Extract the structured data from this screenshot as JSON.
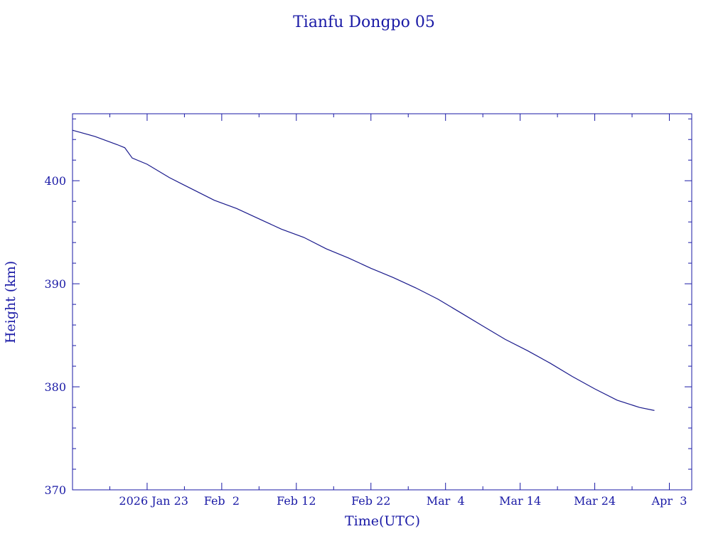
{
  "chart_data": {
    "type": "line",
    "title": "Tianfu Dongpo 05",
    "xlabel": "Time(UTC)",
    "ylabel": "Height (km)",
    "ylim": [
      370,
      406.5
    ],
    "xlim": [
      "2026-01-13",
      "2026-04-06"
    ],
    "grid": false,
    "x_ticks": [
      {
        "date": "2026-01-23",
        "label": "2026 Jan 23"
      },
      {
        "date": "2026-02-02",
        "label": "Feb  2"
      },
      {
        "date": "2026-02-12",
        "label": "Feb 12"
      },
      {
        "date": "2026-02-22",
        "label": "Feb 22"
      },
      {
        "date": "2026-03-04",
        "label": "Mar  4"
      },
      {
        "date": "2026-03-14",
        "label": "Mar 14"
      },
      {
        "date": "2026-03-24",
        "label": "Mar 24"
      },
      {
        "date": "2026-04-03",
        "label": "Apr  3"
      }
    ],
    "y_ticks": [
      {
        "value": 370,
        "label": "370"
      },
      {
        "value": 380,
        "label": "380"
      },
      {
        "value": 390,
        "label": "390"
      },
      {
        "value": 400,
        "label": "400"
      }
    ],
    "series": [
      {
        "color": "#1a1a8c",
        "points": [
          {
            "x": "2026-01-13",
            "y": 404.9
          },
          {
            "x": "2026-01-16",
            "y": 404.3
          },
          {
            "x": "2026-01-19",
            "y": 403.5
          },
          {
            "x": "2026-01-20",
            "y": 403.2
          },
          {
            "x": "2026-01-21",
            "y": 402.2
          },
          {
            "x": "2026-01-23",
            "y": 401.6
          },
          {
            "x": "2026-01-26",
            "y": 400.3
          },
          {
            "x": "2026-01-29",
            "y": 399.2
          },
          {
            "x": "2026-02-01",
            "y": 398.1
          },
          {
            "x": "2026-02-04",
            "y": 397.3
          },
          {
            "x": "2026-02-07",
            "y": 396.3
          },
          {
            "x": "2026-02-10",
            "y": 395.3
          },
          {
            "x": "2026-02-13",
            "y": 394.5
          },
          {
            "x": "2026-02-16",
            "y": 393.4
          },
          {
            "x": "2026-02-19",
            "y": 392.5
          },
          {
            "x": "2026-02-22",
            "y": 391.5
          },
          {
            "x": "2026-02-25",
            "y": 390.6
          },
          {
            "x": "2026-02-28",
            "y": 389.6
          },
          {
            "x": "2026-03-03",
            "y": 388.5
          },
          {
            "x": "2026-03-06",
            "y": 387.2
          },
          {
            "x": "2026-03-09",
            "y": 385.9
          },
          {
            "x": "2026-03-12",
            "y": 384.6
          },
          {
            "x": "2026-03-15",
            "y": 383.5
          },
          {
            "x": "2026-03-18",
            "y": 382.3
          },
          {
            "x": "2026-03-21",
            "y": 381.0
          },
          {
            "x": "2026-03-24",
            "y": 379.8
          },
          {
            "x": "2026-03-27",
            "y": 378.7
          },
          {
            "x": "2026-03-30",
            "y": 378.0
          },
          {
            "x": "2026-04-01",
            "y": 377.7
          }
        ]
      }
    ]
  }
}
